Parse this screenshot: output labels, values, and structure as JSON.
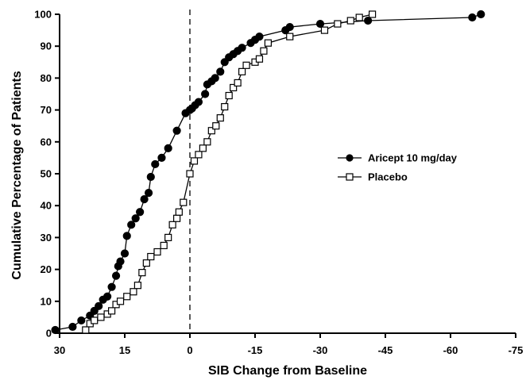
{
  "chart_data": {
    "type": "line",
    "title": "",
    "xlabel": "SIB Change from Baseline",
    "ylabel": "Cumulative Percentage of Patients",
    "xlim": [
      30,
      -75
    ],
    "ylim": [
      0,
      100
    ],
    "x_ticks": [
      30,
      15,
      0,
      -15,
      -30,
      -45,
      -60,
      -75
    ],
    "x_tick_labels": [
      "30",
      "15",
      "0",
      "-15",
      "-30",
      "-45",
      "-60",
      "-75"
    ],
    "y_ticks": [
      0,
      10,
      20,
      30,
      40,
      50,
      60,
      70,
      80,
      90,
      100
    ],
    "y_tick_labels": [
      "0",
      "10",
      "20",
      "30",
      "40",
      "50",
      "60",
      "70",
      "80",
      "90",
      "100"
    ],
    "reference_line": {
      "x": 0,
      "style": "dashed"
    },
    "legend_position": "right",
    "grid": false,
    "series": [
      {
        "name": "Aricept 10 mg/day",
        "marker": "filled-circle",
        "color": "#000000",
        "points": [
          [
            31,
            1
          ],
          [
            27,
            2
          ],
          [
            25,
            4
          ],
          [
            23,
            5.5
          ],
          [
            22,
            7
          ],
          [
            21,
            8.5
          ],
          [
            20,
            10.5
          ],
          [
            19,
            11.5
          ],
          [
            18,
            14.5
          ],
          [
            17,
            18
          ],
          [
            16.5,
            21
          ],
          [
            16,
            22.5
          ],
          [
            15,
            25
          ],
          [
            14.5,
            30.5
          ],
          [
            13.5,
            34
          ],
          [
            12.5,
            36
          ],
          [
            11.5,
            38
          ],
          [
            10.5,
            42
          ],
          [
            9.5,
            44
          ],
          [
            9,
            49
          ],
          [
            8,
            53
          ],
          [
            6.5,
            55
          ],
          [
            5,
            58
          ],
          [
            3,
            63.5
          ],
          [
            1,
            69
          ],
          [
            0,
            70
          ],
          [
            -0.5,
            70.5
          ],
          [
            -1.2,
            71.5
          ],
          [
            -2,
            72.5
          ],
          [
            -3.5,
            75
          ],
          [
            -4,
            78
          ],
          [
            -5,
            79
          ],
          [
            -5.8,
            80
          ],
          [
            -7,
            82
          ],
          [
            -8,
            85
          ],
          [
            -9,
            86.5
          ],
          [
            -10,
            87.5
          ],
          [
            -11,
            88.5
          ],
          [
            -12,
            89.5
          ],
          [
            -14,
            91
          ],
          [
            -15,
            92
          ],
          [
            -16,
            93
          ],
          [
            -22,
            95
          ],
          [
            -23,
            96
          ],
          [
            -30,
            97
          ],
          [
            -41,
            98
          ],
          [
            -65,
            99
          ],
          [
            -67,
            100
          ]
        ]
      },
      {
        "name": "Placebo",
        "marker": "open-square",
        "color": "#000000",
        "points": [
          [
            24,
            1
          ],
          [
            23,
            3
          ],
          [
            22,
            4
          ],
          [
            20.5,
            5
          ],
          [
            19,
            6
          ],
          [
            18,
            7
          ],
          [
            17,
            9
          ],
          [
            16,
            10
          ],
          [
            14.5,
            11.5
          ],
          [
            13,
            13
          ],
          [
            12,
            15
          ],
          [
            11,
            19
          ],
          [
            10,
            22
          ],
          [
            9,
            24
          ],
          [
            7.5,
            25.5
          ],
          [
            6,
            27.5
          ],
          [
            5,
            30
          ],
          [
            4,
            34
          ],
          [
            3,
            36
          ],
          [
            2.5,
            38
          ],
          [
            1.5,
            41
          ],
          [
            0,
            50
          ],
          [
            -1,
            54
          ],
          [
            -2,
            56
          ],
          [
            -3,
            58
          ],
          [
            -4,
            60
          ],
          [
            -5,
            63.5
          ],
          [
            -6,
            65
          ],
          [
            -7,
            67.5
          ],
          [
            -8,
            71
          ],
          [
            -9,
            74.5
          ],
          [
            -10,
            77
          ],
          [
            -11,
            78.5
          ],
          [
            -12,
            82
          ],
          [
            -13,
            84
          ],
          [
            -15,
            85
          ],
          [
            -16,
            86
          ],
          [
            -17,
            88.5
          ],
          [
            -18,
            91
          ],
          [
            -23,
            93
          ],
          [
            -31,
            95
          ],
          [
            -34,
            97
          ],
          [
            -37,
            98
          ],
          [
            -39,
            99
          ],
          [
            -42,
            100
          ]
        ]
      }
    ]
  }
}
